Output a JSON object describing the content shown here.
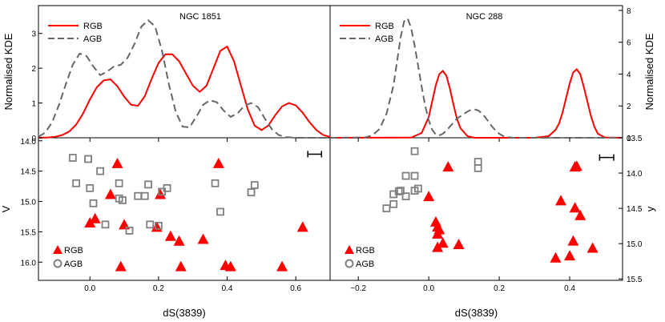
{
  "chart_data": [
    {
      "type": "line",
      "panel": "top-left",
      "title": "NGC 1851",
      "ylabel": "Normalised KDE",
      "ylim": [
        0,
        3.8
      ],
      "xlim": [
        -0.15,
        0.7
      ],
      "yticks": [
        0,
        1,
        2,
        3
      ],
      "legend_position": "top-left",
      "series": [
        {
          "name": "RGB",
          "color": "#ff0000",
          "style": "solid",
          "x": [
            -0.15,
            -0.12,
            -0.1,
            -0.08,
            -0.06,
            -0.04,
            -0.02,
            0.0,
            0.02,
            0.04,
            0.06,
            0.08,
            0.1,
            0.12,
            0.14,
            0.16,
            0.18,
            0.2,
            0.22,
            0.24,
            0.26,
            0.28,
            0.3,
            0.32,
            0.34,
            0.36,
            0.38,
            0.4,
            0.42,
            0.44,
            0.46,
            0.48,
            0.5,
            0.52,
            0.54,
            0.56,
            0.58,
            0.6,
            0.62,
            0.64,
            0.66,
            0.68,
            0.7
          ],
          "y": [
            0.0,
            0.01,
            0.03,
            0.08,
            0.18,
            0.38,
            0.7,
            1.1,
            1.45,
            1.65,
            1.68,
            1.48,
            1.18,
            0.95,
            0.92,
            1.2,
            1.7,
            2.15,
            2.4,
            2.4,
            2.2,
            1.85,
            1.5,
            1.32,
            1.5,
            2.0,
            2.5,
            2.62,
            2.2,
            1.5,
            0.82,
            0.35,
            0.22,
            0.35,
            0.65,
            0.9,
            1.0,
            0.93,
            0.72,
            0.45,
            0.22,
            0.08,
            0.02
          ]
        },
        {
          "name": "AGB",
          "color": "#666666",
          "style": "dashed",
          "x": [
            -0.15,
            -0.13,
            -0.11,
            -0.09,
            -0.07,
            -0.05,
            -0.03,
            -0.01,
            0.01,
            0.03,
            0.05,
            0.07,
            0.09,
            0.11,
            0.13,
            0.15,
            0.17,
            0.19,
            0.21,
            0.23,
            0.25,
            0.27,
            0.29,
            0.31,
            0.33,
            0.35,
            0.37,
            0.39,
            0.41,
            0.43,
            0.45,
            0.47,
            0.49,
            0.51,
            0.53,
            0.55,
            0.57,
            0.6,
            0.65,
            0.7
          ],
          "y": [
            0.03,
            0.15,
            0.45,
            0.95,
            1.55,
            2.1,
            2.42,
            2.35,
            2.05,
            1.8,
            1.9,
            2.05,
            2.1,
            2.3,
            2.7,
            3.2,
            3.38,
            3.2,
            2.5,
            1.55,
            0.75,
            0.32,
            0.3,
            0.6,
            0.95,
            1.08,
            1.02,
            0.78,
            0.6,
            0.7,
            0.92,
            1.0,
            0.88,
            0.55,
            0.25,
            0.08,
            0.02,
            0.0,
            0.0,
            0.0
          ]
        }
      ]
    },
    {
      "type": "line",
      "panel": "top-right",
      "title": "NGC 288",
      "ylabel": "Normalised KDE",
      "ylim": [
        0,
        8.3
      ],
      "xlim": [
        -0.28,
        0.55
      ],
      "yticks": [
        0,
        2,
        4,
        6,
        8
      ],
      "legend_position": "top-left",
      "series": [
        {
          "name": "RGB",
          "color": "#ff0000",
          "style": "solid",
          "x": [
            -0.28,
            -0.05,
            -0.02,
            0.0,
            0.01,
            0.02,
            0.03,
            0.04,
            0.05,
            0.06,
            0.07,
            0.08,
            0.09,
            0.11,
            0.13,
            0.3,
            0.34,
            0.36,
            0.37,
            0.38,
            0.39,
            0.4,
            0.41,
            0.42,
            0.43,
            0.44,
            0.45,
            0.46,
            0.47,
            0.48,
            0.5,
            0.55
          ],
          "y": [
            0.0,
            0.01,
            0.3,
            1.3,
            2.3,
            3.3,
            4.0,
            4.2,
            3.9,
            3.1,
            2.1,
            1.2,
            0.6,
            0.1,
            0.0,
            0.0,
            0.1,
            0.5,
            0.9,
            1.6,
            2.5,
            3.4,
            4.1,
            4.3,
            4.0,
            3.2,
            2.3,
            1.4,
            0.7,
            0.25,
            0.02,
            0.0
          ]
        },
        {
          "name": "AGB",
          "color": "#666666",
          "style": "dashed",
          "x": [
            -0.28,
            -0.18,
            -0.16,
            -0.14,
            -0.12,
            -0.1,
            -0.09,
            -0.08,
            -0.07,
            -0.06,
            -0.05,
            -0.04,
            -0.03,
            -0.02,
            -0.01,
            0.0,
            0.01,
            0.02,
            0.03,
            0.04,
            0.05,
            0.06,
            0.07,
            0.08,
            0.09,
            0.1,
            0.11,
            0.12,
            0.13,
            0.14,
            0.15,
            0.16,
            0.17,
            0.18,
            0.19,
            0.2,
            0.21,
            0.22,
            0.24,
            0.3,
            0.55
          ],
          "y": [
            0.0,
            0.02,
            0.15,
            0.55,
            1.5,
            3.3,
            4.8,
            6.3,
            7.3,
            7.5,
            6.9,
            5.8,
            4.5,
            3.2,
            2.0,
            1.1,
            0.5,
            0.2,
            0.15,
            0.25,
            0.45,
            0.7,
            0.95,
            1.2,
            1.35,
            1.5,
            1.65,
            1.75,
            1.78,
            1.72,
            1.55,
            1.3,
            1.0,
            0.7,
            0.45,
            0.25,
            0.12,
            0.05,
            0.0,
            0.0,
            0.0
          ]
        }
      ]
    },
    {
      "type": "scatter",
      "panel": "bottom-left",
      "xlabel": "dS(3839)",
      "ylabel": "V",
      "xlim": [
        -0.15,
        0.7
      ],
      "ylim": [
        16.3,
        13.95
      ],
      "xticks": [
        0.0,
        0.2,
        0.4,
        0.6
      ],
      "xticklabels": [
        "0.0",
        "0.2",
        "0.4",
        "0.6"
      ],
      "yticks": [
        14.0,
        14.5,
        15.0,
        15.5,
        16.0
      ],
      "yticklabels": [
        "14.0",
        "14.5",
        "15.0",
        "15.5",
        "16.0"
      ],
      "legend_position": "bottom-left",
      "errorbar": {
        "x": 0.655,
        "y": 14.22,
        "xerr": 0.02
      },
      "series": [
        {
          "name": "RGB",
          "marker": "triangle",
          "color": "#ff0000",
          "x": [
            0.08,
            0.375,
            0.06,
            0.205,
            0.015,
            0.0,
            0.1,
            0.195,
            0.62,
            0.235,
            0.26,
            0.33,
            0.09,
            0.265,
            0.395,
            0.41,
            0.56
          ],
          "y": [
            14.37,
            14.37,
            14.88,
            14.88,
            15.28,
            15.35,
            15.38,
            15.42,
            15.42,
            15.57,
            15.65,
            15.62,
            16.07,
            16.07,
            16.05,
            16.07,
            16.07
          ]
        },
        {
          "name": "AGB",
          "marker": "square",
          "color": "#808080",
          "x": [
            -0.05,
            -0.005,
            0.0,
            0.03,
            0.085,
            -0.04,
            0.085,
            0.14,
            0.16,
            0.17,
            0.21,
            0.225,
            0.365,
            0.48,
            0.01,
            0.095,
            0.045,
            0.175,
            0.2,
            0.38,
            0.47,
            0.115
          ],
          "y": [
            14.28,
            14.3,
            14.78,
            14.5,
            14.7,
            14.7,
            14.95,
            14.91,
            14.91,
            14.72,
            14.84,
            14.78,
            14.7,
            14.73,
            15.03,
            14.98,
            15.38,
            15.38,
            15.4,
            15.17,
            14.85,
            15.48
          ]
        }
      ]
    },
    {
      "type": "scatter",
      "panel": "bottom-right",
      "xlabel": "dS(3839)",
      "ylabel": "y",
      "xlim": [
        -0.28,
        0.55
      ],
      "ylim": [
        15.52,
        13.5
      ],
      "xticks": [
        -0.2,
        0.0,
        0.2,
        0.4
      ],
      "xticklabels": [
        "−0.2",
        "0.0",
        "0.2",
        "0.4"
      ],
      "yticks": [
        13.5,
        14.0,
        14.5,
        15.0,
        15.5
      ],
      "yticklabels": [
        "13.5",
        "14.0",
        "14.5",
        "15.0",
        "15.5"
      ],
      "legend_position": "bottom-left",
      "errorbar": {
        "x": 0.505,
        "y": 13.78,
        "xerr": 0.02
      },
      "series": [
        {
          "name": "RGB",
          "marker": "triangle",
          "color": "#ff0000",
          "x": [
            0.055,
            0.0,
            0.02,
            0.025,
            0.03,
            0.025,
            0.04,
            0.085,
            0.025,
            0.36,
            0.375,
            0.415,
            0.43,
            0.41,
            0.42,
            0.415,
            0.465,
            0.4
          ],
          "y": [
            13.91,
            14.33,
            14.69,
            14.76,
            14.8,
            14.86,
            14.99,
            15.01,
            15.05,
            15.2,
            14.39,
            14.49,
            14.6,
            14.96,
            13.9,
            13.91,
            15.06,
            15.17
          ]
        },
        {
          "name": "AGB",
          "marker": "square",
          "color": "#808080",
          "x": [
            -0.04,
            -0.065,
            -0.04,
            -0.04,
            -0.08,
            -0.12,
            -0.1,
            -0.085,
            -0.065,
            -0.1,
            -0.03,
            0.14,
            0.14
          ],
          "y": [
            13.69,
            14.04,
            14.04,
            14.25,
            14.25,
            14.5,
            14.44,
            14.26,
            14.33,
            14.3,
            14.22,
            13.84,
            13.93
          ]
        }
      ]
    }
  ]
}
